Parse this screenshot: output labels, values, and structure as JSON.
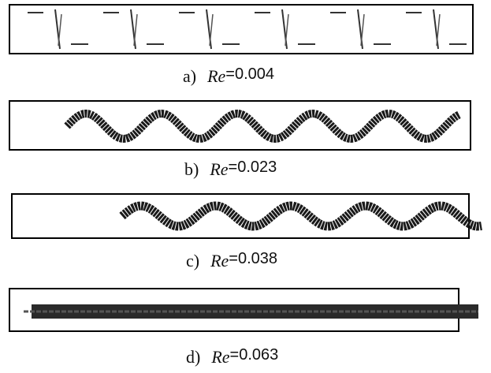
{
  "panels": [
    {
      "label": "a)",
      "symbol": "Re",
      "value": "=0.004"
    },
    {
      "label": "b)",
      "symbol": "Re",
      "value": "=0.023"
    },
    {
      "label": "c)",
      "symbol": "Re",
      "value": "=0.038"
    },
    {
      "label": "d)",
      "symbol": "Re",
      "value": "=0.063"
    }
  ]
}
